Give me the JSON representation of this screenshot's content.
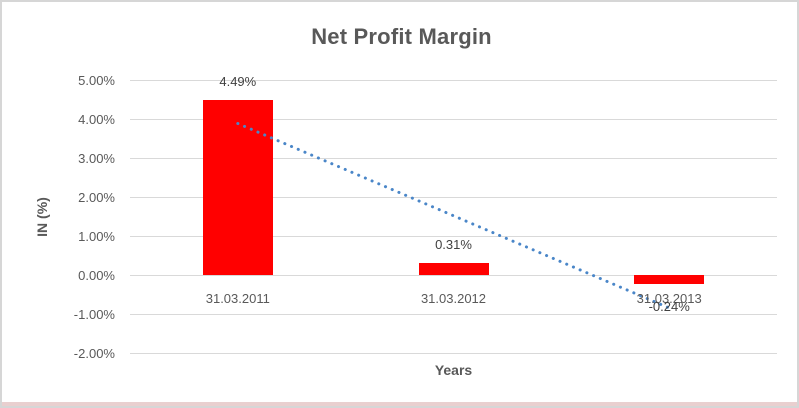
{
  "chart_data": {
    "type": "bar",
    "title": "Net Profit Margin",
    "xlabel": "Years",
    "ylabel": "IN (%)",
    "categories": [
      "31.03.2011",
      "31.03.2012",
      "31.03.2013"
    ],
    "values": [
      4.49,
      0.31,
      -0.24
    ],
    "data_labels": [
      "4.49%",
      "0.31%",
      "-0.24%"
    ],
    "y_ticks": [
      {
        "label": "5.00%",
        "value": 5
      },
      {
        "label": "4.00%",
        "value": 4
      },
      {
        "label": "3.00%",
        "value": 3
      },
      {
        "label": "2.00%",
        "value": 2
      },
      {
        "label": "1.00%",
        "value": 1
      },
      {
        "label": "0.00%",
        "value": 0
      },
      {
        "label": "-1.00%",
        "value": -1
      },
      {
        "label": "-2.00%",
        "value": -2
      }
    ],
    "ylim": [
      -2,
      5
    ],
    "grid": true,
    "legend": "none",
    "trendline": {
      "type": "linear",
      "style": "dotted",
      "start_value": 3.885,
      "end_value": -0.845
    },
    "colors": {
      "bar": "#ff0000",
      "trendline": "#4a86c8",
      "gridline": "#d9d9d9",
      "axis_text": "#595959",
      "data_label_text": "#404040",
      "title_text": "#595959",
      "frame_border": "#d6d6d6",
      "bottom_strip": "#e9cfcf",
      "background": "#ffffff"
    }
  }
}
